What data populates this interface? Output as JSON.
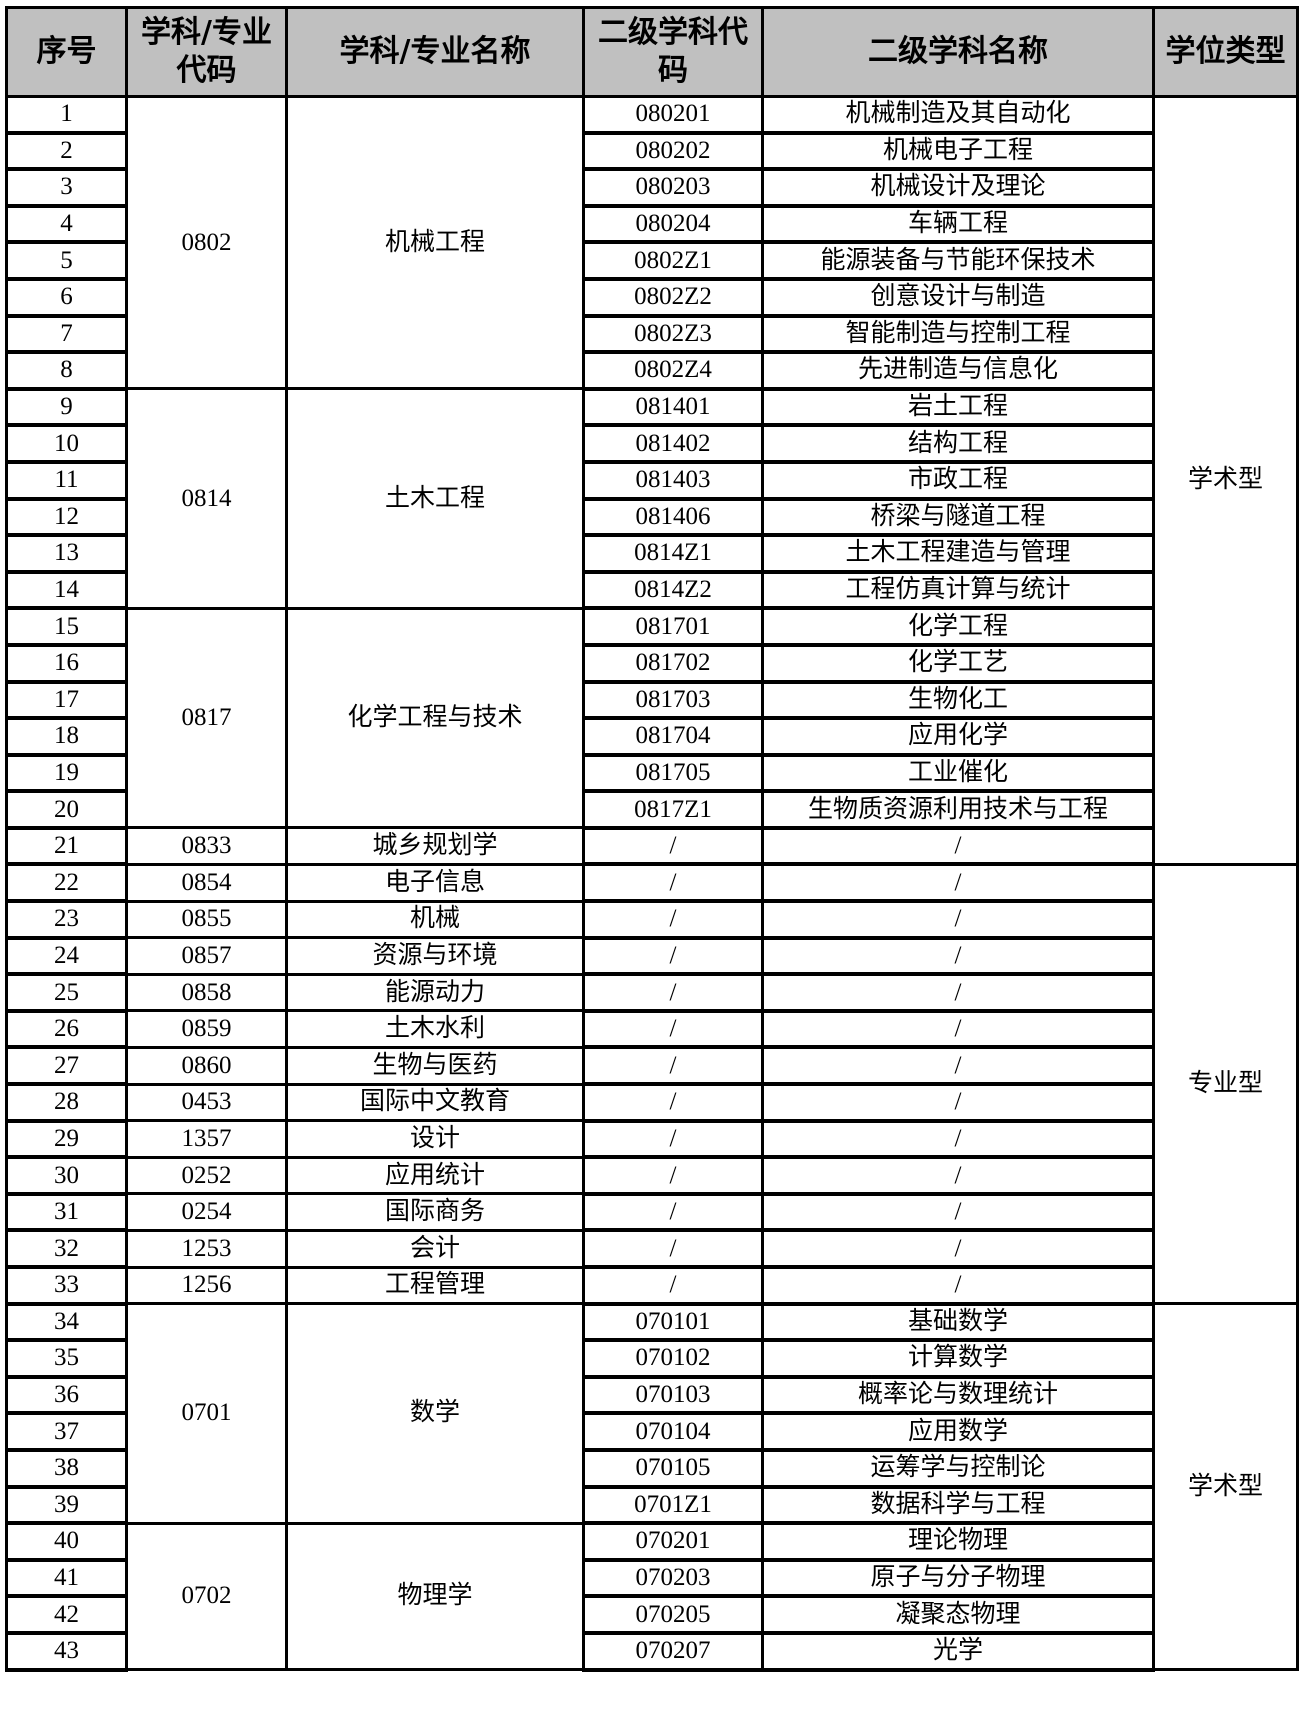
{
  "headers": [
    "序号",
    "学科/专业代码",
    "学科/专业名称",
    "二级学科代码",
    "二级学科名称",
    "学位类型"
  ],
  "rows": [
    {
      "no": "1",
      "code": "0802",
      "name": "机械工程",
      "sub_code": "080201",
      "sub_name": "机械制造及其自动化",
      "degree": "学术型"
    },
    {
      "no": "2",
      "code": "0802",
      "name": "机械工程",
      "sub_code": "080202",
      "sub_name": "机械电子工程",
      "degree": "学术型"
    },
    {
      "no": "3",
      "code": "0802",
      "name": "机械工程",
      "sub_code": "080203",
      "sub_name": "机械设计及理论",
      "degree": "学术型"
    },
    {
      "no": "4",
      "code": "0802",
      "name": "机械工程",
      "sub_code": "080204",
      "sub_name": "车辆工程",
      "degree": "学术型"
    },
    {
      "no": "5",
      "code": "0802",
      "name": "机械工程",
      "sub_code": "0802Z1",
      "sub_name": "能源装备与节能环保技术",
      "degree": "学术型"
    },
    {
      "no": "6",
      "code": "0802",
      "name": "机械工程",
      "sub_code": "0802Z2",
      "sub_name": "创意设计与制造",
      "degree": "学术型"
    },
    {
      "no": "7",
      "code": "0802",
      "name": "机械工程",
      "sub_code": "0802Z3",
      "sub_name": "智能制造与控制工程",
      "degree": "学术型"
    },
    {
      "no": "8",
      "code": "0802",
      "name": "机械工程",
      "sub_code": "0802Z4",
      "sub_name": "先进制造与信息化",
      "degree": "学术型"
    },
    {
      "no": "9",
      "code": "0814",
      "name": "土木工程",
      "sub_code": "081401",
      "sub_name": "岩土工程",
      "degree": "学术型"
    },
    {
      "no": "10",
      "code": "0814",
      "name": "土木工程",
      "sub_code": "081402",
      "sub_name": "结构工程",
      "degree": "学术型"
    },
    {
      "no": "11",
      "code": "0814",
      "name": "土木工程",
      "sub_code": "081403",
      "sub_name": "市政工程",
      "degree": "学术型"
    },
    {
      "no": "12",
      "code": "0814",
      "name": "土木工程",
      "sub_code": "081406",
      "sub_name": "桥梁与隧道工程",
      "degree": "学术型"
    },
    {
      "no": "13",
      "code": "0814",
      "name": "土木工程",
      "sub_code": "0814Z1",
      "sub_name": "土木工程建造与管理",
      "degree": "学术型"
    },
    {
      "no": "14",
      "code": "0814",
      "name": "土木工程",
      "sub_code": "0814Z2",
      "sub_name": "工程仿真计算与统计",
      "degree": "学术型"
    },
    {
      "no": "15",
      "code": "0817",
      "name": "化学工程与技术",
      "sub_code": "081701",
      "sub_name": "化学工程",
      "degree": "学术型"
    },
    {
      "no": "16",
      "code": "0817",
      "name": "化学工程与技术",
      "sub_code": "081702",
      "sub_name": "化学工艺",
      "degree": "学术型"
    },
    {
      "no": "17",
      "code": "0817",
      "name": "化学工程与技术",
      "sub_code": "081703",
      "sub_name": "生物化工",
      "degree": "学术型"
    },
    {
      "no": "18",
      "code": "0817",
      "name": "化学工程与技术",
      "sub_code": "081704",
      "sub_name": "应用化学",
      "degree": "学术型"
    },
    {
      "no": "19",
      "code": "0817",
      "name": "化学工程与技术",
      "sub_code": "081705",
      "sub_name": "工业催化",
      "degree": "学术型"
    },
    {
      "no": "20",
      "code": "0817",
      "name": "化学工程与技术",
      "sub_code": "0817Z1",
      "sub_name": "生物质资源利用技术与工程",
      "degree": "学术型"
    },
    {
      "no": "21",
      "code": "0833",
      "name": "城乡规划学",
      "sub_code": "/",
      "sub_name": "/",
      "degree": "学术型"
    },
    {
      "no": "22",
      "code": "0854",
      "name": "电子信息",
      "sub_code": "/",
      "sub_name": "/",
      "degree": "专业型"
    },
    {
      "no": "23",
      "code": "0855",
      "name": "机械",
      "sub_code": "/",
      "sub_name": "/",
      "degree": "专业型"
    },
    {
      "no": "24",
      "code": "0857",
      "name": "资源与环境",
      "sub_code": "/",
      "sub_name": "/",
      "degree": "专业型"
    },
    {
      "no": "25",
      "code": "0858",
      "name": "能源动力",
      "sub_code": "/",
      "sub_name": "/",
      "degree": "专业型"
    },
    {
      "no": "26",
      "code": "0859",
      "name": "土木水利",
      "sub_code": "/",
      "sub_name": "/",
      "degree": "专业型"
    },
    {
      "no": "27",
      "code": "0860",
      "name": "生物与医药",
      "sub_code": "/",
      "sub_name": "/",
      "degree": "专业型"
    },
    {
      "no": "28",
      "code": "0453",
      "name": "国际中文教育",
      "sub_code": "/",
      "sub_name": "/",
      "degree": "专业型"
    },
    {
      "no": "29",
      "code": "1357",
      "name": "设计",
      "sub_code": "/",
      "sub_name": "/",
      "degree": "专业型"
    },
    {
      "no": "30",
      "code": "0252",
      "name": "应用统计",
      "sub_code": "/",
      "sub_name": "/",
      "degree": "专业型"
    },
    {
      "no": "31",
      "code": "0254",
      "name": "国际商务",
      "sub_code": "/",
      "sub_name": "/",
      "degree": "专业型"
    },
    {
      "no": "32",
      "code": "1253",
      "name": "会计",
      "sub_code": "/",
      "sub_name": "/",
      "degree": "专业型"
    },
    {
      "no": "33",
      "code": "1256",
      "name": "工程管理",
      "sub_code": "/",
      "sub_name": "/",
      "degree": "专业型"
    },
    {
      "no": "34",
      "code": "0701",
      "name": "数学",
      "sub_code": "070101",
      "sub_name": "基础数学",
      "degree": "学术型 "
    },
    {
      "no": "35",
      "code": "0701",
      "name": "数学",
      "sub_code": "070102",
      "sub_name": "计算数学",
      "degree": "学术型 "
    },
    {
      "no": "36",
      "code": "0701",
      "name": "数学",
      "sub_code": "070103",
      "sub_name": "概率论与数理统计",
      "degree": "学术型 "
    },
    {
      "no": "37",
      "code": "0701",
      "name": "数学",
      "sub_code": "070104",
      "sub_name": "应用数学",
      "degree": "学术型 "
    },
    {
      "no": "38",
      "code": "0701",
      "name": "数学",
      "sub_code": "070105",
      "sub_name": "运筹学与控制论",
      "degree": "学术型 "
    },
    {
      "no": "39",
      "code": "0701",
      "name": "数学",
      "sub_code": "0701Z1",
      "sub_name": "数据科学与工程",
      "degree": "学术型 "
    },
    {
      "no": "40",
      "code": "0702",
      "name": "物理学",
      "sub_code": "070201",
      "sub_name": "理论物理",
      "degree": "学术型 "
    },
    {
      "no": "41",
      "code": "0702",
      "name": "物理学",
      "sub_code": "070203",
      "sub_name": "原子与分子物理",
      "degree": "学术型 "
    },
    {
      "no": "42",
      "code": "0702",
      "name": "物理学",
      "sub_code": "070205",
      "sub_name": "凝聚态物理",
      "degree": "学术型 "
    },
    {
      "no": "43",
      "code": "0702",
      "name": "物理学",
      "sub_code": "070207",
      "sub_name": "光学",
      "degree": "学术型 "
    }
  ]
}
